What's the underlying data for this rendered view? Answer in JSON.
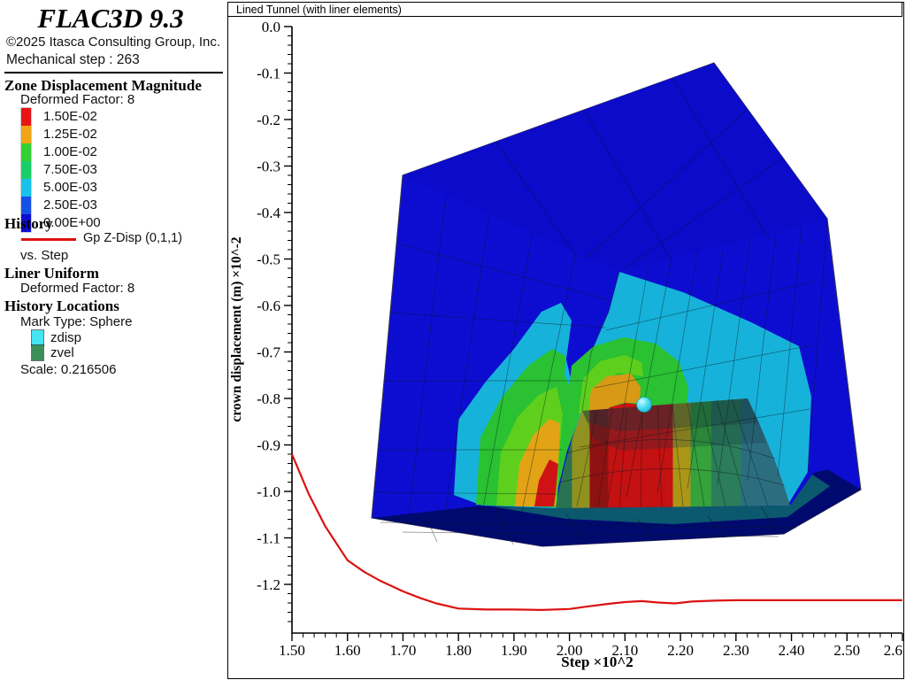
{
  "legend": {
    "app_title": "FLAC3D 9.3",
    "copyright": "©2025 Itasca Consulting Group, Inc.",
    "mechanical_step": "Mechanical step : 263",
    "zone": {
      "heading": "Zone Displacement Magnitude",
      "deformed_factor": "Deformed Factor: 8",
      "colorscale": [
        {
          "value": "1.50E-02",
          "color": "#e81416"
        },
        {
          "value": "1.25E-02",
          "color": "#f2a414"
        },
        {
          "value": "1.00E-02",
          "color": "#33d133"
        },
        {
          "value": "7.50E-03",
          "color": "#17cf68"
        },
        {
          "value": "5.00E-03",
          "color": "#16c3ea"
        },
        {
          "value": "2.50E-03",
          "color": "#1650e8"
        },
        {
          "value": "0.00E+00",
          "color": "#0d0dd0"
        }
      ]
    },
    "history": {
      "heading": "History",
      "series_label": "Gp Z-Disp (0,1,1)",
      "vs_label": "vs. Step",
      "line_color": "#dd1111"
    },
    "liner": {
      "heading": "Liner Uniform",
      "deformed_factor": "Deformed Factor: 8"
    },
    "history_locations": {
      "heading": "History Locations",
      "mark_type": "Mark Type: Sphere",
      "markers": [
        {
          "label": "zdisp",
          "color": "#45e4f2"
        },
        {
          "label": "zvel",
          "color": "#3e8e5a"
        }
      ],
      "scale": "Scale: 0.216506"
    }
  },
  "plot": {
    "title": "Lined Tunnel (with liner elements)",
    "xlabel": "Step ×10^2",
    "ylabel": "crown displacement (m) ×10^-2",
    "x_ticks": [
      {
        "label": "1.50",
        "value": 150
      },
      {
        "label": "1.60",
        "value": 160
      },
      {
        "label": "1.70",
        "value": 170
      },
      {
        "label": "1.80",
        "value": 180
      },
      {
        "label": "1.90",
        "value": 190
      },
      {
        "label": "2.00",
        "value": 200
      },
      {
        "label": "2.10",
        "value": 210
      },
      {
        "label": "2.20",
        "value": 220
      },
      {
        "label": "2.30",
        "value": 230
      },
      {
        "label": "2.40",
        "value": 240
      },
      {
        "label": "2.50",
        "value": 250
      },
      {
        "label": "2.6",
        "value": 260
      }
    ],
    "y_ticks": [
      {
        "label": "0.0",
        "value": 0.0
      },
      {
        "label": "-0.1",
        "value": -0.1
      },
      {
        "label": "-0.2",
        "value": -0.2
      },
      {
        "label": "-0.3",
        "value": -0.3
      },
      {
        "label": "-0.4",
        "value": -0.4
      },
      {
        "label": "-0.5",
        "value": -0.5
      },
      {
        "label": "-0.6",
        "value": -0.6
      },
      {
        "label": "-0.7",
        "value": -0.7
      },
      {
        "label": "-0.8",
        "value": -0.8
      },
      {
        "label": "-0.9",
        "value": -0.9
      },
      {
        "label": "-1.0",
        "value": -1.0
      },
      {
        "label": "-1.1",
        "value": -1.1
      },
      {
        "label": "-1.2",
        "value": -1.2
      }
    ]
  },
  "chart_data": {
    "type": "line",
    "title": "Lined Tunnel (with liner elements)",
    "xlabel": "Step ×10^2",
    "ylabel": "crown displacement (m) ×10^-2",
    "xlim": [
      150,
      260
    ],
    "ylim": [
      -1.305,
      0.0
    ],
    "x_major_step": 10,
    "x_minor_step": 2,
    "y_major_step": 0.1,
    "y_minor_step": 0.02,
    "grid": false,
    "legend_position": "left-panel",
    "series": [
      {
        "name": "Gp Z-Disp (0,1,1)",
        "color": "#dd1111",
        "points": [
          [
            150,
            -0.92
          ],
          [
            153,
            -1.005
          ],
          [
            156,
            -1.075
          ],
          [
            160,
            -1.148
          ],
          [
            163,
            -1.173
          ],
          [
            166,
            -1.193
          ],
          [
            170,
            -1.215
          ],
          [
            173,
            -1.229
          ],
          [
            176,
            -1.241
          ],
          [
            180,
            -1.252
          ],
          [
            185,
            -1.254
          ],
          [
            190,
            -1.254
          ],
          [
            195,
            -1.255
          ],
          [
            200,
            -1.253
          ],
          [
            203,
            -1.248
          ],
          [
            207,
            -1.242
          ],
          [
            210,
            -1.238
          ],
          [
            213,
            -1.236
          ],
          [
            216,
            -1.239
          ],
          [
            219,
            -1.241
          ],
          [
            222,
            -1.237
          ],
          [
            226,
            -1.235
          ],
          [
            230,
            -1.234
          ],
          [
            235,
            -1.234
          ],
          [
            240,
            -1.234
          ],
          [
            245,
            -1.234
          ],
          [
            250,
            -1.234
          ],
          [
            255,
            -1.234
          ],
          [
            260,
            -1.234
          ]
        ]
      }
    ],
    "marker": {
      "name": "crown-history-point",
      "color": "#45e4f2",
      "shape": "sphere"
    }
  }
}
